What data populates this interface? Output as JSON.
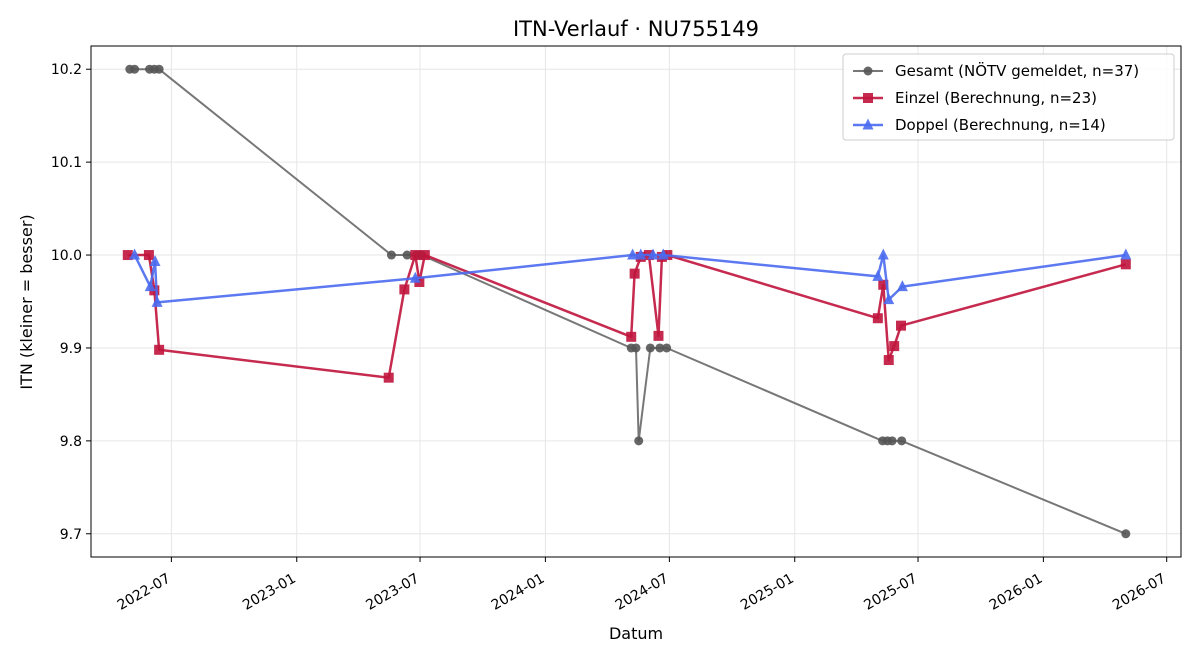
{
  "chart_data": {
    "type": "line",
    "title": "ITN-Verlauf · NU755149",
    "xlabel": "Datum",
    "ylabel": "ITN  (kleiner = besser)",
    "x_type": "date",
    "xlim": [
      "2022-03-05",
      "2026-07-22"
    ],
    "ylim": [
      9.675,
      10.225
    ],
    "x_ticks": [
      "2022-07-01",
      "2023-01-01",
      "2023-07-01",
      "2024-01-01",
      "2024-07-01",
      "2025-01-01",
      "2025-07-01",
      "2026-01-01",
      "2026-07-01"
    ],
    "x_tick_labels": [
      "2022-07",
      "2023-01",
      "2023-07",
      "2024-01",
      "2024-07",
      "2025-01",
      "2025-07",
      "2026-01",
      "2026-07"
    ],
    "y_ticks": [
      9.7,
      9.8,
      9.9,
      10.0,
      10.1,
      10.2
    ],
    "y_tick_labels": [
      "9.7",
      "9.8",
      "9.9",
      "10.0",
      "10.1",
      "10.2"
    ],
    "grid": true,
    "legend_position": "top-right",
    "series": [
      {
        "name": "Gesamt (NÖTV gemeldet, n=37)",
        "color": "#555555",
        "marker": "circle",
        "points": [
          {
            "x": "2022-05-01",
            "y": 10.2
          },
          {
            "x": "2022-05-08",
            "y": 10.2
          },
          {
            "x": "2022-05-30",
            "y": 10.2
          },
          {
            "x": "2022-06-06",
            "y": 10.2
          },
          {
            "x": "2022-06-13",
            "y": 10.2
          },
          {
            "x": "2023-05-20",
            "y": 10.0
          },
          {
            "x": "2023-06-12",
            "y": 10.0
          },
          {
            "x": "2023-06-26",
            "y": 10.0
          },
          {
            "x": "2023-07-03",
            "y": 10.0
          },
          {
            "x": "2024-05-06",
            "y": 9.9
          },
          {
            "x": "2024-05-13",
            "y": 9.9
          },
          {
            "x": "2024-05-17",
            "y": 9.8
          },
          {
            "x": "2024-06-03",
            "y": 9.9
          },
          {
            "x": "2024-06-17",
            "y": 9.9
          },
          {
            "x": "2024-06-27",
            "y": 9.9
          },
          {
            "x": "2025-05-10",
            "y": 9.8
          },
          {
            "x": "2025-05-17",
            "y": 9.8
          },
          {
            "x": "2025-05-24",
            "y": 9.8
          },
          {
            "x": "2025-06-07",
            "y": 9.8
          },
          {
            "x": "2026-05-02",
            "y": 9.7
          }
        ]
      },
      {
        "name": "Einzel (Berechnung, n=23)",
        "color": "#c0143c",
        "marker": "square",
        "points": [
          {
            "x": "2022-04-28",
            "y": 10.0
          },
          {
            "x": "2022-05-29",
            "y": 10.0
          },
          {
            "x": "2022-06-06",
            "y": 9.962
          },
          {
            "x": "2022-06-13",
            "y": 9.898
          },
          {
            "x": "2023-05-16",
            "y": 9.868
          },
          {
            "x": "2023-06-08",
            "y": 9.963
          },
          {
            "x": "2023-06-24",
            "y": 10.0
          },
          {
            "x": "2023-06-30",
            "y": 9.971
          },
          {
            "x": "2023-07-08",
            "y": 10.0
          },
          {
            "x": "2024-05-06",
            "y": 9.912
          },
          {
            "x": "2024-05-11",
            "y": 9.98
          },
          {
            "x": "2024-05-20",
            "y": 9.998
          },
          {
            "x": "2024-06-01",
            "y": 10.0
          },
          {
            "x": "2024-06-15",
            "y": 9.913
          },
          {
            "x": "2024-06-20",
            "y": 9.998
          },
          {
            "x": "2024-06-28",
            "y": 10.0
          },
          {
            "x": "2025-05-03",
            "y": 9.932
          },
          {
            "x": "2025-05-11",
            "y": 9.968
          },
          {
            "x": "2025-05-19",
            "y": 9.887
          },
          {
            "x": "2025-05-27",
            "y": 9.902
          },
          {
            "x": "2025-06-06",
            "y": 9.924
          },
          {
            "x": "2026-05-02",
            "y": 9.99
          }
        ]
      },
      {
        "name": "Doppel (Berechnung, n=14)",
        "color": "#4a6af0",
        "marker": "triangle",
        "points": [
          {
            "x": "2022-05-08",
            "y": 10.0
          },
          {
            "x": "2022-05-31",
            "y": 9.966
          },
          {
            "x": "2022-06-07",
            "y": 9.993
          },
          {
            "x": "2022-06-10",
            "y": 9.949
          },
          {
            "x": "2023-06-24",
            "y": 9.975
          },
          {
            "x": "2024-05-08",
            "y": 10.0
          },
          {
            "x": "2024-05-20",
            "y": 10.0
          },
          {
            "x": "2024-06-07",
            "y": 10.0
          },
          {
            "x": "2024-06-22",
            "y": 10.0
          },
          {
            "x": "2025-05-03",
            "y": 9.977
          },
          {
            "x": "2025-05-11",
            "y": 10.0
          },
          {
            "x": "2025-05-19",
            "y": 9.952
          },
          {
            "x": "2025-06-08",
            "y": 9.966
          },
          {
            "x": "2026-05-02",
            "y": 10.0
          }
        ]
      }
    ]
  }
}
